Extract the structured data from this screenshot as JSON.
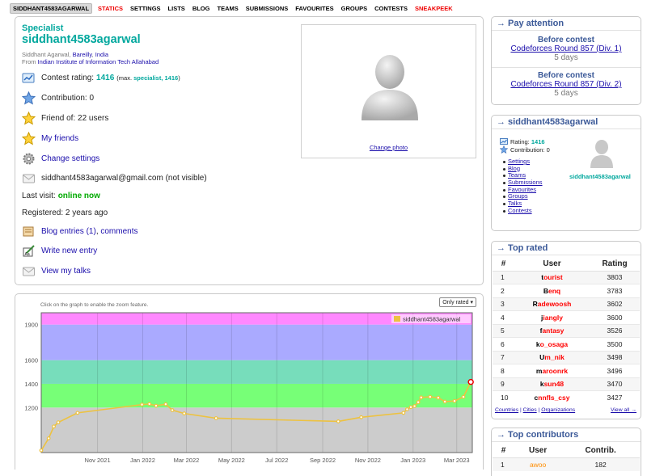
{
  "nav": {
    "handle": "SIDDHANT4583AGARWAL",
    "items": [
      "STATICS",
      "SETTINGS",
      "LISTS",
      "BLOG",
      "TEAMS",
      "SUBMISSIONS",
      "FAVOURITES",
      "GROUPS",
      "CONTESTS",
      "SNEAKPEEK"
    ]
  },
  "profile": {
    "rank": "Specialist",
    "handle": "siddhant4583agarwal",
    "name": "Siddhant Agarwal,",
    "city": "Bareilly",
    "country": "India",
    "from_label": "From",
    "organization": "Indian Institute of Information Tech Allahabad",
    "contest_rating_label": "Contest rating:",
    "contest_rating": "1416",
    "max_prefix": "(max.",
    "max_rank": "specialist, 1416",
    "max_suffix": ")",
    "contribution": "Contribution: 0",
    "friend_of": "Friend of: 22 users",
    "my_friends": "My friends",
    "change_settings": "Change settings",
    "email": "siddhant4583agarwal@gmail.com (not visible)",
    "last_visit_label": "Last visit:",
    "last_visit": "online now",
    "registered": "Registered: 2 years ago",
    "blog_entries": "Blog entries (1)",
    "comments": "comments",
    "write_entry": "Write new entry",
    "view_talks": "View my talks",
    "change_photo": "Change photo"
  },
  "chart": {
    "hint": "Click on the graph to enable the zoom feature.",
    "filter": "Only rated"
  },
  "chart_data": {
    "type": "line",
    "series": [
      {
        "name": "siddhant4583agarwal",
        "color": "#edc240",
        "points": [
          [
            "2021-08-17",
            838
          ],
          [
            "2021-08-27",
            940
          ],
          [
            "2021-09-03",
            1040
          ],
          [
            "2021-09-09",
            1075
          ],
          [
            "2021-10-05",
            1155
          ],
          [
            "2021-12-31",
            1225
          ],
          [
            "2022-01-10",
            1230
          ],
          [
            "2022-01-19",
            1215
          ],
          [
            "2022-02-01",
            1228
          ],
          [
            "2022-02-10",
            1178
          ],
          [
            "2022-02-26",
            1150
          ],
          [
            "2022-04-10",
            1110
          ],
          [
            "2022-09-22",
            1083
          ],
          [
            "2022-10-23",
            1118
          ],
          [
            "2022-12-19",
            1155
          ],
          [
            "2022-12-24",
            1185
          ],
          [
            "2022-12-29",
            1203
          ],
          [
            "2023-01-03",
            1212
          ],
          [
            "2023-01-08",
            1245
          ],
          [
            "2023-01-12",
            1285
          ],
          [
            "2023-01-24",
            1290
          ],
          [
            "2023-02-04",
            1283
          ],
          [
            "2023-02-13",
            1250
          ],
          [
            "2023-02-26",
            1255
          ],
          [
            "2023-03-10",
            1290
          ],
          [
            "2023-03-20",
            1416
          ]
        ]
      }
    ],
    "x_ticks": [
      "Nov 2021",
      "Jan 2022",
      "Mar 2022",
      "May 2022",
      "Jul 2022",
      "Sep 2022",
      "Nov 2022",
      "Jan 2023",
      "Mar 2023"
    ],
    "y_ticks": [
      1200,
      1400,
      1600,
      1900
    ],
    "ylim": [
      820,
      2000
    ],
    "xlim": [
      "2021-08-17",
      "2023-03-22"
    ],
    "bands": [
      {
        "from": 820,
        "to": 1200,
        "color": "#cccccc"
      },
      {
        "from": 1200,
        "to": 1400,
        "color": "#77ff77"
      },
      {
        "from": 1400,
        "to": 1600,
        "color": "#77ddbb"
      },
      {
        "from": 1600,
        "to": 1900,
        "color": "#aaaaff"
      },
      {
        "from": 1900,
        "to": 2000,
        "color": "#ff88ff"
      }
    ],
    "legend_position": "top-right",
    "grid": true
  },
  "sidebar": {
    "pay_attention": {
      "title": "→ Pay attention",
      "contests": [
        {
          "label": "Before contest",
          "name": "Codeforces Round 857 (Div. 1)",
          "days": "5 days"
        },
        {
          "label": "Before contest",
          "name": "Codeforces Round 857 (Div. 2)",
          "days": "5 days"
        }
      ]
    },
    "user_box": {
      "title": "→ siddhant4583agarwal",
      "rating_label": "Rating:",
      "rating": "1416",
      "contribution_label": "Contribution:",
      "contribution": "0",
      "handle": "siddhant4583agarwal",
      "links": [
        "Settings",
        "Blog",
        "Teams",
        "Submissions",
        "Favourites",
        "Groups",
        "Talks",
        "Contests"
      ]
    },
    "top_rated": {
      "title": "→ Top rated",
      "headers": [
        "#",
        "User",
        "Rating"
      ],
      "rows": [
        {
          "rank": "1",
          "first": "t",
          "rest": "ourist",
          "rating": "3803"
        },
        {
          "rank": "2",
          "first": "B",
          "rest": "enq",
          "rating": "3783"
        },
        {
          "rank": "3",
          "first": "R",
          "rest": "adewoosh",
          "rating": "3602"
        },
        {
          "rank": "4",
          "first": "j",
          "rest": "iangly",
          "rating": "3600"
        },
        {
          "rank": "5",
          "first": "f",
          "rest": "antasy",
          "rating": "3526"
        },
        {
          "rank": "6",
          "first": "k",
          "rest": "o_osaga",
          "rating": "3500"
        },
        {
          "rank": "7",
          "first": "U",
          "rest": "m_nik",
          "rating": "3498"
        },
        {
          "rank": "8",
          "first": "m",
          "rest": "aroonrk",
          "rating": "3496"
        },
        {
          "rank": "9",
          "first": "k",
          "rest": "sun48",
          "rating": "3470"
        },
        {
          "rank": "10",
          "first": "c",
          "rest": "nnfls_csy",
          "rating": "3427"
        }
      ],
      "footer_links": [
        "Countries",
        "Cities",
        "Organizations"
      ],
      "view_all": "View all →"
    },
    "top_contributors": {
      "title": "→ Top contributors",
      "headers": [
        "#",
        "User",
        "Contrib."
      ],
      "rows": [
        {
          "rank": "1",
          "user": "awoo",
          "contrib": "182"
        }
      ]
    }
  }
}
